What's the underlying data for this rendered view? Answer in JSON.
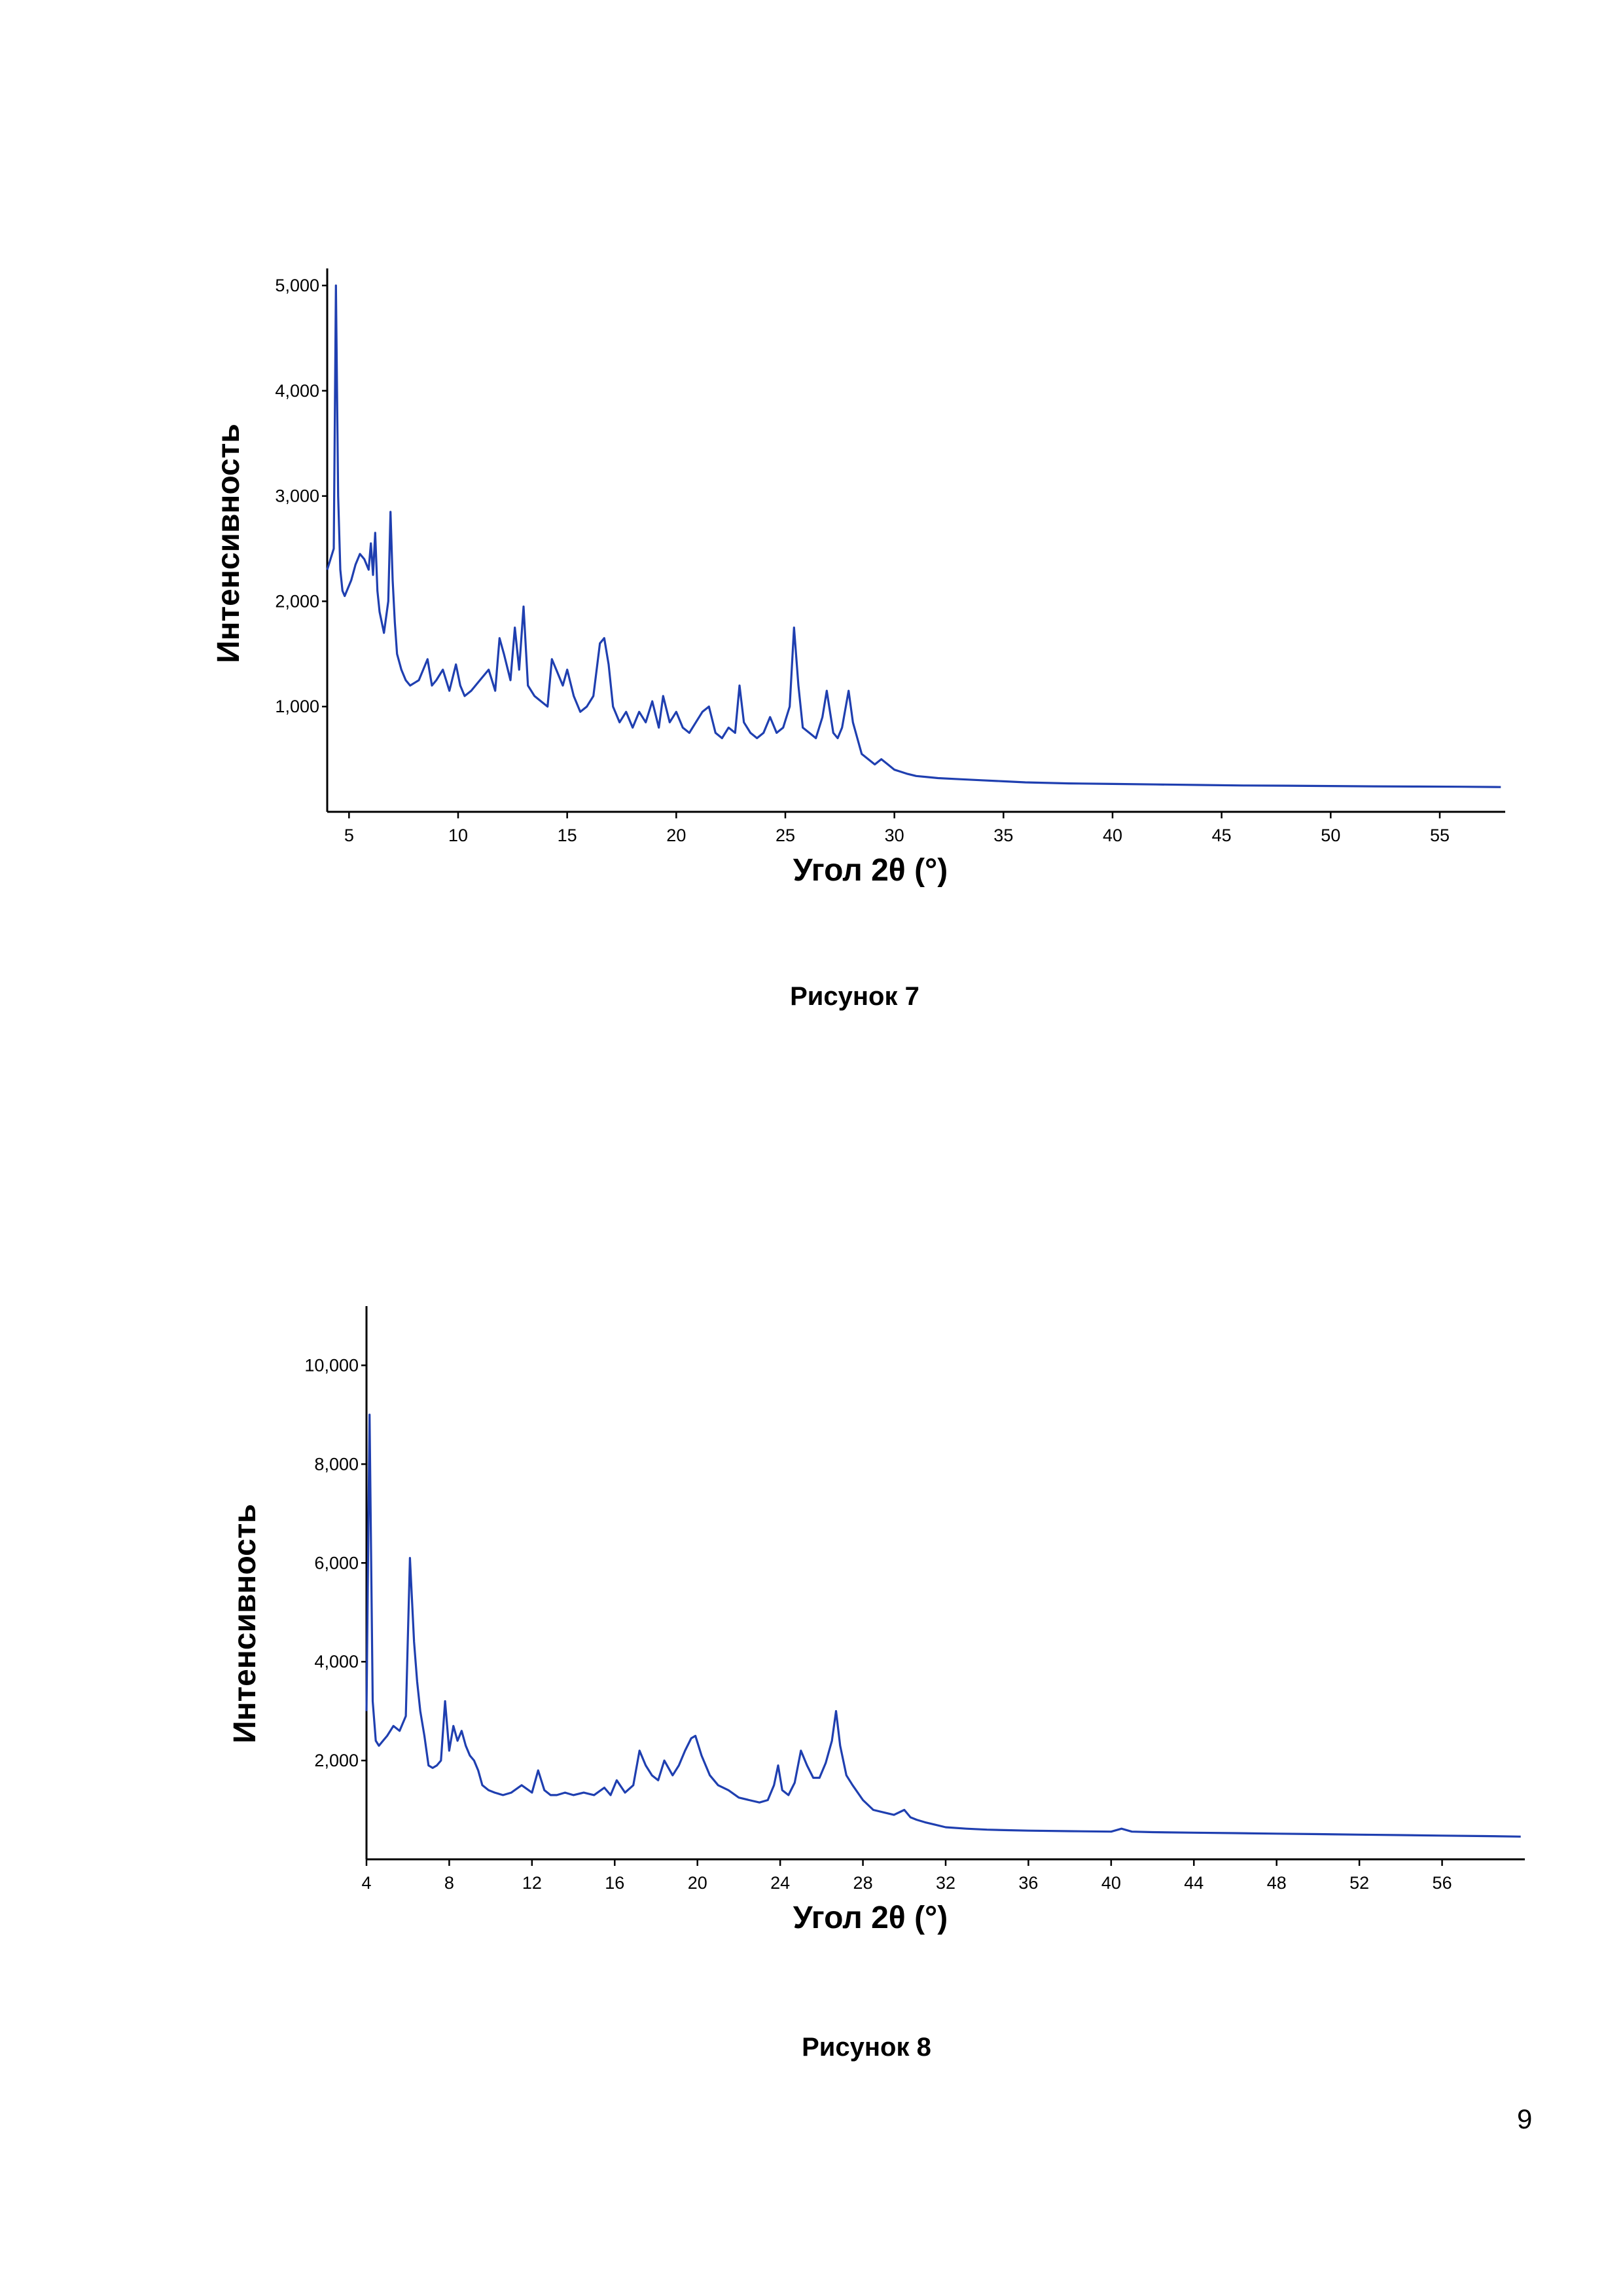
{
  "page": {
    "number": "9"
  },
  "figures": [
    {
      "caption": "Рисунок 7"
    },
    {
      "caption": "Рисунок 8"
    }
  ],
  "colors": {
    "series": "#1f3fb0"
  },
  "chart_data": [
    {
      "type": "line",
      "xlabel": "Угол 2θ (°)",
      "ylabel": "Интенсивность",
      "xlim": [
        4,
        58
      ],
      "ylim": [
        0,
        5100
      ],
      "xticks": [
        5,
        10,
        15,
        20,
        25,
        30,
        35,
        40,
        45,
        50,
        55
      ],
      "xtick_labels": [
        "5",
        "10",
        "15",
        "20",
        "25",
        "30",
        "35",
        "40",
        "45",
        "50",
        "55"
      ],
      "yticks": [
        1000,
        2000,
        3000,
        4000,
        5000
      ],
      "ytick_labels": [
        "1,000",
        "2,000",
        "3,000",
        "4,000",
        "5,000"
      ],
      "series": [
        {
          "x": [
            4.0,
            4.3,
            4.4,
            4.5,
            4.6,
            4.7,
            4.8,
            4.9,
            5.1,
            5.3,
            5.5,
            5.7,
            5.9,
            6.0,
            6.1,
            6.2,
            6.3,
            6.4,
            6.6,
            6.8,
            6.9,
            7.0,
            7.1,
            7.2,
            7.4,
            7.6,
            7.8,
            8.2,
            8.6,
            8.8,
            9.0,
            9.3,
            9.6,
            9.9,
            10.1,
            10.3,
            10.6,
            11.0,
            11.4,
            11.7,
            11.9,
            12.1,
            12.4,
            12.6,
            12.8,
            13.0,
            13.2,
            13.5,
            13.8,
            14.1,
            14.3,
            14.5,
            14.8,
            15.0,
            15.3,
            15.6,
            15.9,
            16.2,
            16.5,
            16.7,
            16.9,
            17.1,
            17.4,
            17.7,
            18.0,
            18.3,
            18.6,
            18.9,
            19.2,
            19.4,
            19.7,
            20.0,
            20.3,
            20.6,
            20.9,
            21.2,
            21.5,
            21.8,
            22.1,
            22.4,
            22.7,
            22.9,
            23.1,
            23.4,
            23.7,
            24.0,
            24.3,
            24.6,
            24.9,
            25.2,
            25.4,
            25.6,
            25.8,
            26.1,
            26.4,
            26.7,
            26.9,
            27.2,
            27.4,
            27.6,
            27.9,
            28.1,
            28.3,
            28.5,
            28.8,
            29.1,
            29.4,
            29.7,
            30.0,
            30.3,
            30.6,
            31.0,
            31.5,
            32.0,
            33.0,
            34.0,
            35.0,
            36.0,
            38.0,
            40.0,
            42.0,
            44.0,
            46.0,
            48.0,
            50.0,
            52.0,
            54.0,
            56.0,
            57.8
          ],
          "y": [
            2300,
            2500,
            5000,
            3000,
            2300,
            2100,
            2050,
            2100,
            2200,
            2350,
            2450,
            2400,
            2300,
            2550,
            2250,
            2650,
            2100,
            1900,
            1700,
            2000,
            2850,
            2200,
            1800,
            1500,
            1350,
            1250,
            1200,
            1250,
            1450,
            1200,
            1250,
            1350,
            1150,
            1400,
            1200,
            1100,
            1150,
            1250,
            1350,
            1150,
            1650,
            1500,
            1250,
            1750,
            1350,
            1950,
            1200,
            1100,
            1050,
            1000,
            1450,
            1350,
            1200,
            1350,
            1100,
            950,
            1000,
            1100,
            1600,
            1650,
            1400,
            1000,
            850,
            950,
            800,
            950,
            850,
            1050,
            800,
            1100,
            850,
            950,
            800,
            750,
            850,
            950,
            1000,
            750,
            700,
            800,
            750,
            1200,
            850,
            750,
            700,
            750,
            900,
            750,
            800,
            1000,
            1750,
            1200,
            800,
            750,
            700,
            900,
            1150,
            750,
            700,
            800,
            1150,
            850,
            700,
            550,
            500,
            450,
            500,
            450,
            400,
            380,
            360,
            340,
            330,
            320,
            310,
            300,
            290,
            280,
            270,
            265,
            260,
            255,
            250,
            248,
            245,
            242,
            240,
            238,
            235
          ]
        }
      ]
    },
    {
      "type": "line",
      "xlabel": "Угол 2θ (°)",
      "ylabel": "Интенсивность",
      "xlim": [
        4,
        60
      ],
      "ylim": [
        0,
        11000
      ],
      "xticks": [
        4,
        8,
        12,
        16,
        20,
        24,
        28,
        32,
        36,
        40,
        44,
        48,
        52,
        56
      ],
      "xtick_labels": [
        "4",
        "8",
        "12",
        "16",
        "20",
        "24",
        "28",
        "32",
        "36",
        "40",
        "44",
        "48",
        "52",
        "56"
      ],
      "yticks": [
        2000,
        4000,
        6000,
        8000,
        10000
      ],
      "ytick_labels": [
        "2,000",
        "4,000",
        "6,000",
        "8,000",
        "10,000"
      ],
      "series": [
        {
          "x": [
            4.0,
            4.15,
            4.3,
            4.45,
            4.6,
            4.8,
            5.0,
            5.3,
            5.6,
            5.9,
            6.1,
            6.3,
            6.45,
            6.6,
            6.8,
            7.0,
            7.2,
            7.4,
            7.6,
            7.8,
            8.0,
            8.2,
            8.4,
            8.6,
            8.8,
            9.0,
            9.2,
            9.4,
            9.6,
            9.9,
            10.2,
            10.6,
            11.0,
            11.5,
            12.0,
            12.3,
            12.6,
            12.9,
            13.2,
            13.6,
            14.0,
            14.5,
            15.0,
            15.5,
            15.8,
            16.1,
            16.5,
            16.9,
            17.2,
            17.5,
            17.8,
            18.1,
            18.4,
            18.8,
            19.1,
            19.4,
            19.7,
            19.9,
            20.2,
            20.6,
            21.0,
            21.5,
            22.0,
            22.5,
            23.0,
            23.4,
            23.7,
            23.9,
            24.1,
            24.4,
            24.7,
            25.0,
            25.3,
            25.6,
            25.9,
            26.2,
            26.5,
            26.7,
            26.9,
            27.2,
            27.5,
            28.0,
            28.5,
            29.0,
            29.5,
            30.0,
            30.3,
            30.6,
            31.0,
            31.5,
            32.0,
            33.0,
            34.0,
            35.0,
            36.0,
            38.0,
            40.0,
            40.5,
            41.0,
            42.0,
            44.0,
            46.0,
            48.0,
            50.0,
            52.0,
            54.0,
            56.0,
            58.0,
            59.8
          ],
          "y": [
            3000,
            9000,
            3200,
            2400,
            2300,
            2400,
            2500,
            2700,
            2600,
            2900,
            6100,
            4400,
            3600,
            3000,
            2500,
            1900,
            1850,
            1900,
            2000,
            3200,
            2200,
            2700,
            2400,
            2600,
            2300,
            2100,
            2000,
            1800,
            1500,
            1400,
            1350,
            1300,
            1350,
            1500,
            1350,
            1800,
            1400,
            1300,
            1300,
            1350,
            1300,
            1350,
            1300,
            1450,
            1300,
            1600,
            1350,
            1500,
            2200,
            1900,
            1700,
            1600,
            2000,
            1700,
            1900,
            2200,
            2450,
            2500,
            2100,
            1700,
            1500,
            1400,
            1250,
            1200,
            1150,
            1200,
            1500,
            1900,
            1400,
            1300,
            1550,
            2200,
            1900,
            1650,
            1650,
            1950,
            2400,
            3000,
            2300,
            1700,
            1500,
            1200,
            1000,
            950,
            900,
            1000,
            850,
            800,
            750,
            700,
            650,
            620,
            600,
            590,
            580,
            570,
            560,
            620,
            560,
            550,
            540,
            530,
            520,
            510,
            500,
            490,
            480,
            470,
            460
          ]
        }
      ]
    }
  ]
}
